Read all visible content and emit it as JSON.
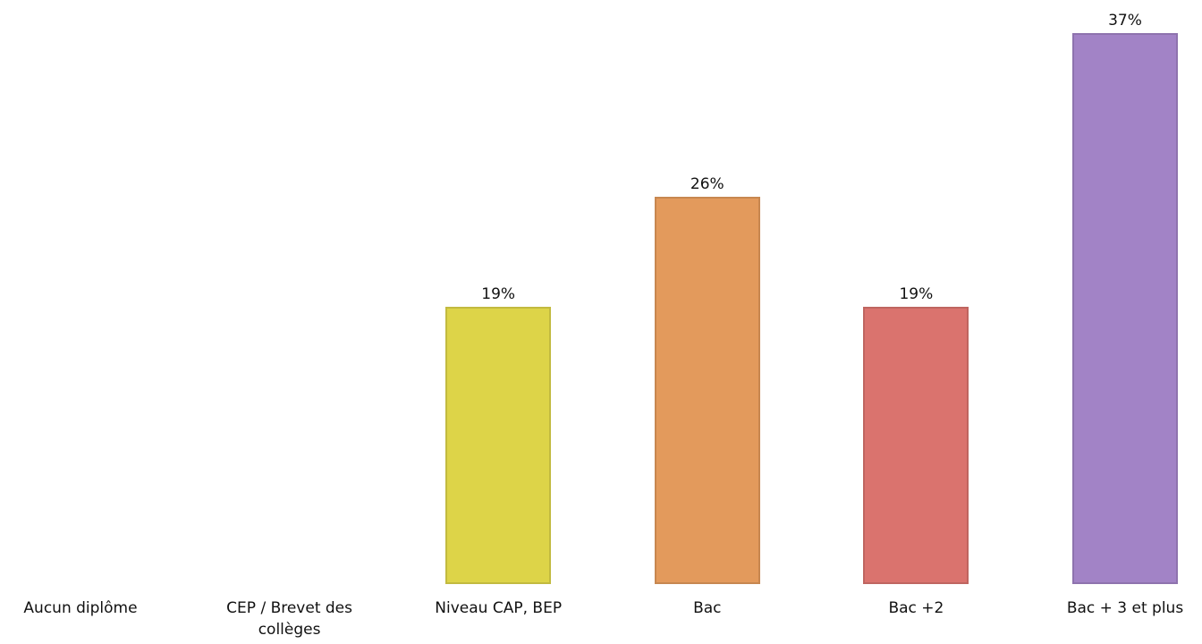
{
  "chart_data": {
    "type": "bar",
    "categories": [
      "Aucun diplôme",
      "CEP / Brevet des collèges",
      "Niveau CAP, BEP",
      "Bac",
      "Bac +2",
      "Bac + 3 et plus"
    ],
    "values": [
      null,
      null,
      18.6,
      26,
      18.6,
      37
    ],
    "value_labels": [
      null,
      null,
      "19%",
      "26%",
      "19%",
      "37%"
    ],
    "colors": [
      null,
      null,
      "#ddd448",
      "#e39a5c",
      "#da736e",
      "#a283c6"
    ]
  }
}
